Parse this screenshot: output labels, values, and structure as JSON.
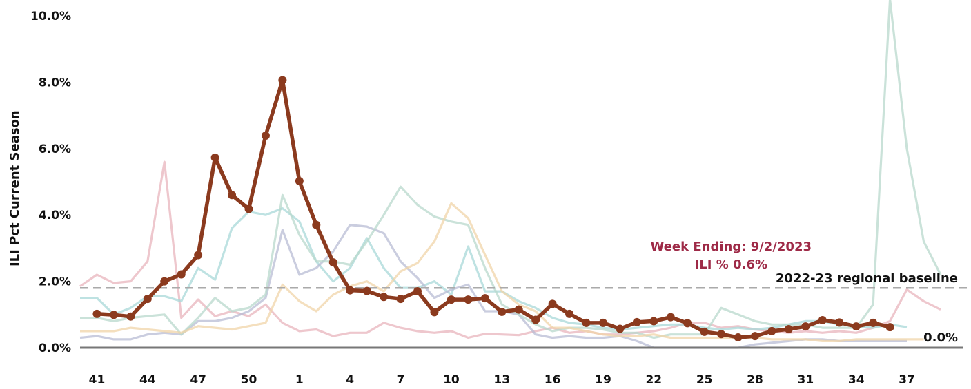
{
  "chart_data": {
    "type": "line",
    "ylabel": "ILI Pct Current Season",
    "xlabel": "",
    "ylim": [
      0,
      10.0
    ],
    "y_ticks": [
      "0.0%",
      "2.0%",
      "4.0%",
      "6.0%",
      "8.0%",
      "10.0%"
    ],
    "y_tick_values": [
      0,
      2,
      4,
      6,
      8,
      10
    ],
    "x_weeks": [
      40,
      41,
      42,
      43,
      44,
      45,
      46,
      47,
      48,
      49,
      50,
      51,
      52,
      1,
      2,
      3,
      4,
      5,
      6,
      7,
      8,
      9,
      10,
      11,
      12,
      13,
      14,
      15,
      16,
      17,
      18,
      19,
      20,
      21,
      22,
      23,
      24,
      25,
      26,
      27,
      28,
      29,
      30,
      31,
      32,
      33,
      34,
      35,
      36,
      37,
      38,
      39
    ],
    "x_tick_labels": [
      "41",
      "44",
      "47",
      "50",
      "1",
      "4",
      "7",
      "10",
      "13",
      "16",
      "19",
      "22",
      "25",
      "28",
      "31",
      "34",
      "37"
    ],
    "x_tick_indices": [
      1,
      4,
      7,
      10,
      13,
      16,
      19,
      22,
      25,
      28,
      31,
      34,
      37,
      40,
      43,
      46,
      49
    ],
    "grid": false,
    "baseline": {
      "value": 1.8,
      "label": "2022-23 regional baseline"
    },
    "zero_label": "0.0%",
    "annotation": {
      "line1": "Week Ending: 9/2/2023",
      "line2": "ILI % 0.6%"
    },
    "colors": {
      "current": "#8b3a1e",
      "baseline": "#aaaaaa",
      "axis": "#777777",
      "annotation": "#9e2a47",
      "prior_seasons": [
        "#e8b4bc",
        "#a8d8d8",
        "#b8bcd4",
        "#b8d8cc",
        "#f0d4a8",
        "#f0c0c8"
      ]
    },
    "series": [
      {
        "values": [
          1.02,
          0.99,
          0.94,
          1.47,
          2.0,
          2.21,
          2.79,
          5.73,
          4.6,
          4.18,
          6.39,
          8.06,
          5.02,
          3.7,
          2.57,
          1.73,
          1.71,
          1.53,
          1.47,
          1.7,
          1.07,
          1.45,
          1.45,
          1.49,
          1.08,
          1.15,
          0.84,
          1.32,
          1.02,
          0.75,
          0.75,
          0.57,
          0.77,
          0.8,
          0.92,
          0.74,
          0.48,
          0.41,
          0.31,
          0.35,
          0.5,
          0.56,
          0.64,
          0.83,
          0.76,
          0.64,
          0.75,
          0.62
        ]
      },
      {
        "values": [
          1.85,
          2.2,
          1.95,
          2.0,
          2.6,
          5.6,
          0.9,
          1.45,
          0.95,
          1.1,
          0.95,
          1.3,
          0.75,
          0.5,
          0.55,
          0.35,
          0.45,
          0.45,
          0.75,
          0.6,
          0.5,
          0.45,
          0.5,
          0.3,
          0.42,
          0.4,
          0.38,
          0.5,
          0.6,
          0.45,
          0.5,
          0.4,
          0.4,
          0.45,
          0.5,
          0.6,
          0.75,
          0.75,
          0.6,
          0.65,
          0.55,
          0.5,
          0.45,
          0.5,
          0.45,
          0.5,
          0.45,
          0.6,
          0.8,
          1.75,
          1.4,
          1.15
        ]
      },
      {
        "values": [
          1.5,
          1.5,
          1.0,
          1.2,
          1.55,
          1.55,
          1.4,
          2.4,
          2.05,
          3.6,
          4.1,
          4.0,
          4.2,
          3.8,
          2.6,
          2.0,
          2.4,
          3.3,
          2.4,
          1.8,
          1.8,
          2.0,
          1.6,
          3.05,
          1.7,
          1.7,
          1.4,
          1.2,
          0.9,
          0.75,
          0.7,
          0.6,
          0.55,
          0.6,
          0.65,
          0.7,
          0.7,
          0.6,
          0.55,
          0.6,
          0.55,
          0.6,
          0.7,
          0.8,
          0.8,
          0.7,
          0.65,
          0.6,
          0.7,
          0.62
        ]
      },
      {
        "values": [
          0.3,
          0.35,
          0.25,
          0.25,
          0.4,
          0.45,
          0.4,
          0.8,
          0.8,
          0.9,
          1.1,
          1.5,
          3.55,
          2.2,
          2.4,
          2.9,
          3.7,
          3.65,
          3.45,
          2.6,
          2.1,
          1.5,
          1.75,
          1.9,
          1.1,
          1.1,
          1.0,
          0.4,
          0.3,
          0.35,
          0.3,
          0.3,
          0.35,
          0.2,
          0.0,
          0.0,
          0.0,
          0.0,
          0.0,
          0.0,
          0.1,
          0.15,
          0.2,
          0.25,
          0.25,
          0.2,
          0.2,
          0.2,
          0.2,
          0.2
        ]
      },
      {
        "values": [
          0.9,
          0.9,
          0.8,
          0.9,
          0.95,
          1.0,
          0.4,
          0.9,
          1.5,
          1.1,
          1.2,
          1.6,
          4.6,
          3.4,
          2.6,
          2.6,
          2.5,
          3.2,
          4.0,
          4.85,
          4.3,
          3.95,
          3.8,
          3.7,
          2.4,
          1.3,
          1.0,
          0.7,
          0.5,
          0.6,
          0.6,
          0.55,
          0.45,
          0.45,
          0.3,
          0.4,
          0.4,
          0.4,
          1.2,
          1.0,
          0.8,
          0.7,
          0.7,
          0.7,
          0.6,
          0.6,
          0.6,
          1.3,
          10.5,
          6.0,
          3.2,
          2.2
        ]
      },
      {
        "values": [
          0.5,
          0.5,
          0.5,
          0.6,
          0.55,
          0.5,
          0.45,
          0.65,
          0.6,
          0.55,
          0.65,
          0.75,
          1.9,
          1.4,
          1.1,
          1.6,
          1.85,
          2.0,
          1.7,
          2.3,
          2.55,
          3.2,
          4.35,
          3.9,
          2.8,
          1.7,
          1.3,
          1.1,
          0.6,
          0.6,
          0.5,
          0.4,
          0.35,
          0.35,
          0.4,
          0.3,
          0.3,
          0.3,
          0.3,
          0.3,
          0.3,
          0.25,
          0.25,
          0.25,
          0.2,
          0.2,
          0.25,
          0.25,
          0.25,
          0.25,
          0.25
        ]
      }
    ]
  }
}
